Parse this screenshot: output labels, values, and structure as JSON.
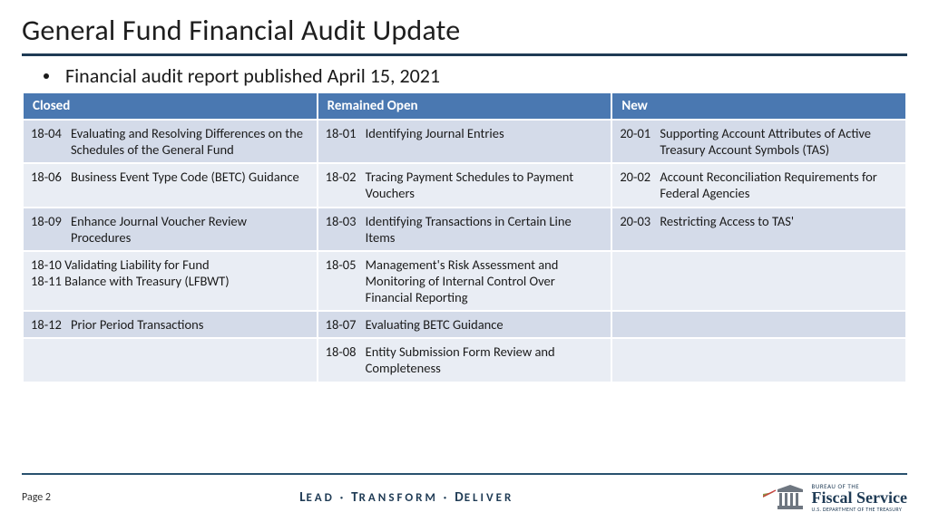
{
  "title": "General Fund Financial Audit Update",
  "bullet": "Financial audit report published April 15, 2021",
  "colors": {
    "header_rule": "#1f3b55",
    "table_header_bg": "#4a78b1",
    "table_header_fg": "#ffffff",
    "row_alt_a": "#d4dbe9",
    "row_alt_b": "#e9edf4",
    "motto": "#1f3b55"
  },
  "table": {
    "columns": [
      "Closed",
      "Remained Open",
      "New"
    ],
    "rows": [
      [
        {
          "code": "18-04",
          "desc": "Evaluating and Resolving Differences on the Schedules of the General Fund"
        },
        {
          "code": "18-01",
          "desc": "Identifying Journal Entries"
        },
        {
          "code": "20-01",
          "desc": "Supporting Account Attributes of Active Treasury Account Symbols (TAS)"
        }
      ],
      [
        {
          "code": "18-06",
          "desc": "Business Event Type Code (BETC) Guidance"
        },
        {
          "code": "18-02",
          "desc": "Tracing Payment Schedules to Payment Vouchers"
        },
        {
          "code": "20-02",
          "desc": "Account Reconciliation Requirements for Federal Agencies"
        }
      ],
      [
        {
          "code": "18-09",
          "desc": "Enhance Journal Voucher Review Procedures"
        },
        {
          "code": "18-03",
          "desc": "Identifying Transactions in Certain Line Items"
        },
        {
          "code": "20-03",
          "desc": "Restricting Access to TAS'"
        }
      ],
      [
        {
          "raw": "18-10 Validating Liability for Fund\n18-11 Balance with Treasury (LFBWT)"
        },
        {
          "code": "18-05",
          "desc": "Management's Risk Assessment and Monitoring of Internal Control Over Financial Reporting"
        },
        null
      ],
      [
        {
          "code": "18-12",
          "desc": "Prior Period Transactions"
        },
        {
          "code": "18-07",
          "desc": "Evaluating BETC Guidance"
        },
        null
      ],
      [
        null,
        {
          "code": "18-08",
          "desc": "Entity Submission Form Review and Completeness"
        },
        null
      ]
    ]
  },
  "footer": {
    "page": "Page 2",
    "motto_parts": [
      "L",
      "EAD · ",
      "T",
      "RANSFORM · ",
      "D",
      "ELIVER"
    ],
    "logo": {
      "line1": "BUREAU OF THE",
      "line2": "Fiscal Service",
      "line3": "U.S. DEPARTMENT OF THE TREASURY"
    }
  }
}
